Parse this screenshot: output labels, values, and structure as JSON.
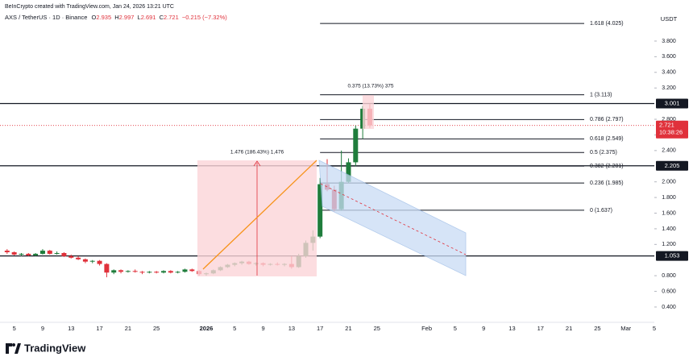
{
  "chart_data": {
    "type": "candlestick",
    "credit": "BeInCrypto created with TradingView.com, Jan 24, 2026 13:21 UTC",
    "symbol": "AXS / TetherUS · 1D · Binance",
    "ohlc_labels": [
      "O",
      "H",
      "L",
      "C"
    ],
    "ohlc_values": [
      2.935,
      2.997,
      2.691,
      2.721
    ],
    "change": "−0.215 (−7.32%)",
    "currency": "USDT",
    "up_color": "#1f7d3c",
    "down_color": "#e0313b",
    "x": [
      "2025-12-04",
      "2025-12-05",
      "2025-12-06",
      "2025-12-07",
      "2025-12-08",
      "2025-12-09",
      "2025-12-10",
      "2025-12-11",
      "2025-12-12",
      "2025-12-13",
      "2025-12-14",
      "2025-12-15",
      "2025-12-16",
      "2025-12-17",
      "2025-12-18",
      "2025-12-19",
      "2025-12-20",
      "2025-12-21",
      "2025-12-22",
      "2025-12-23",
      "2025-12-24",
      "2025-12-25",
      "2025-12-26",
      "2025-12-27",
      "2025-12-28",
      "2025-12-29",
      "2025-12-30",
      "2025-12-31",
      "2026-01-01",
      "2026-01-02",
      "2026-01-03",
      "2026-01-04",
      "2026-01-05",
      "2026-01-06",
      "2026-01-07",
      "2026-01-08",
      "2026-01-09",
      "2026-01-10",
      "2026-01-11",
      "2026-01-12",
      "2026-01-13",
      "2026-01-14",
      "2026-01-15",
      "2026-01-16",
      "2026-01-17",
      "2026-01-18",
      "2026-01-19",
      "2026-01-20",
      "2026-01-21",
      "2026-01-22",
      "2026-01-23",
      "2026-01-24"
    ],
    "ohlc": [
      [
        1.12,
        1.14,
        1.08,
        1.1
      ],
      [
        1.1,
        1.11,
        1.06,
        1.07
      ],
      [
        1.07,
        1.09,
        1.05,
        1.08
      ],
      [
        1.08,
        1.09,
        1.05,
        1.06
      ],
      [
        1.06,
        1.09,
        1.05,
        1.08
      ],
      [
        1.08,
        1.14,
        1.07,
        1.12
      ],
      [
        1.12,
        1.13,
        1.07,
        1.08
      ],
      [
        1.08,
        1.11,
        1.07,
        1.09
      ],
      [
        1.09,
        1.1,
        1.04,
        1.05
      ],
      [
        1.05,
        1.07,
        1.02,
        1.03
      ],
      [
        1.03,
        1.05,
        1.0,
        1.01
      ],
      [
        1.01,
        1.02,
        0.96,
        0.98
      ],
      [
        0.98,
        1.0,
        0.96,
        0.99
      ],
      [
        0.99,
        1.0,
        0.93,
        0.95
      ],
      [
        0.95,
        0.96,
        0.78,
        0.84
      ],
      [
        0.84,
        0.88,
        0.82,
        0.87
      ],
      [
        0.87,
        0.88,
        0.83,
        0.85
      ],
      [
        0.85,
        0.87,
        0.84,
        0.86
      ],
      [
        0.86,
        0.88,
        0.84,
        0.85
      ],
      [
        0.85,
        0.86,
        0.82,
        0.84
      ],
      [
        0.84,
        0.86,
        0.83,
        0.85
      ],
      [
        0.85,
        0.86,
        0.83,
        0.84
      ],
      [
        0.84,
        0.87,
        0.83,
        0.86
      ],
      [
        0.86,
        0.87,
        0.83,
        0.84
      ],
      [
        0.84,
        0.86,
        0.83,
        0.85
      ],
      [
        0.85,
        0.89,
        0.84,
        0.88
      ],
      [
        0.88,
        0.89,
        0.85,
        0.86
      ],
      [
        0.86,
        0.87,
        0.8,
        0.82
      ],
      [
        0.82,
        0.84,
        0.8,
        0.83
      ],
      [
        0.83,
        0.88,
        0.82,
        0.87
      ],
      [
        0.87,
        0.92,
        0.86,
        0.91
      ],
      [
        0.91,
        0.95,
        0.9,
        0.94
      ],
      [
        0.94,
        0.97,
        0.92,
        0.96
      ],
      [
        0.96,
        0.99,
        0.94,
        0.98
      ],
      [
        0.98,
        0.99,
        0.94,
        0.95
      ],
      [
        0.95,
        0.97,
        0.93,
        0.96
      ],
      [
        0.96,
        0.97,
        0.92,
        0.94
      ],
      [
        0.94,
        0.96,
        0.93,
        0.95
      ],
      [
        0.95,
        0.97,
        0.93,
        0.94
      ],
      [
        0.94,
        0.96,
        0.92,
        0.95
      ],
      [
        0.95,
        1.05,
        0.89,
        0.91
      ],
      [
        0.91,
        1.08,
        0.9,
        1.05
      ],
      [
        1.05,
        1.25,
        1.03,
        1.22
      ],
      [
        1.22,
        1.38,
        1.12,
        1.3
      ],
      [
        1.3,
        2.05,
        1.28,
        1.97
      ],
      [
        1.97,
        2.29,
        1.88,
        1.9
      ],
      [
        1.9,
        1.95,
        1.62,
        1.65
      ],
      [
        1.65,
        2.4,
        1.63,
        2.0
      ],
      [
        2.0,
        2.3,
        1.98,
        2.25
      ],
      [
        2.25,
        2.72,
        2.2,
        2.68
      ],
      [
        2.68,
        2.97,
        2.55,
        2.935
      ],
      [
        2.935,
        2.997,
        2.691,
        2.721
      ]
    ],
    "fib_levels": [
      {
        "value": 4.025,
        "label": "1.618 (4.025)"
      },
      {
        "value": 3.113,
        "label": "1 (3.113)"
      },
      {
        "value": 2.797,
        "label": "0.786 (2.797)"
      },
      {
        "value": 2.549,
        "label": "0.618 (2.549)"
      },
      {
        "value": 2.375,
        "label": "0.5 (2.375)"
      },
      {
        "value": 2.201,
        "label": "0.382 (2.201)"
      },
      {
        "value": 1.985,
        "label": "0.236 (1.985)"
      },
      {
        "value": 1.637,
        "label": "0 (1.637)"
      }
    ],
    "hlines": [
      {
        "value": 3.001,
        "label": "3.001"
      },
      {
        "value": 2.205,
        "label": "2.205"
      },
      {
        "value": 1.053,
        "label": "1.053"
      }
    ],
    "last_price": {
      "value": 2.721,
      "label": "2.721"
    },
    "countdown": "10:38:26",
    "annotations": [
      "1.476 (186.43%) 1,476",
      "0.375 (13.73%) 375"
    ],
    "ylim": [
      0.204,
      4.325
    ],
    "yticks": [
      {
        "value": 3.8,
        "label": "3.800"
      },
      {
        "value": 3.6,
        "label": "3.600"
      },
      {
        "value": 3.4,
        "label": "3.400"
      },
      {
        "value": 3.2,
        "label": "3.200"
      },
      {
        "value": 2.8,
        "label": "2.800"
      },
      {
        "value": 2.6,
        "label": "2.600"
      },
      {
        "value": 2.4,
        "label": "2.400"
      },
      {
        "value": 2,
        "label": "2.000"
      },
      {
        "value": 1.8,
        "label": "1.800"
      },
      {
        "value": 1.6,
        "label": "1.600"
      },
      {
        "value": 1.4,
        "label": "1.400"
      },
      {
        "value": 1.2,
        "label": "1.200"
      },
      {
        "value": 0.8,
        "label": "0.800"
      },
      {
        "value": 0.6,
        "label": "0.600"
      },
      {
        "value": 0.4,
        "label": "0.400"
      }
    ],
    "xlim": [
      "2025-12-03",
      "2026-03-05"
    ],
    "xticks": [
      {
        "value": "2025-12-05",
        "label": "5"
      },
      {
        "value": "2025-12-09",
        "label": "9"
      },
      {
        "value": "2025-12-13",
        "label": "13"
      },
      {
        "value": "2025-12-17",
        "label": "17"
      },
      {
        "value": "2025-12-21",
        "label": "21"
      },
      {
        "value": "2025-12-25",
        "label": "25"
      },
      {
        "value": "2026-01-01",
        "label": "2026"
      },
      {
        "value": "2026-01-05",
        "label": "5"
      },
      {
        "value": "2026-01-09",
        "label": "9"
      },
      {
        "value": "2026-01-13",
        "label": "13"
      },
      {
        "value": "2026-01-17",
        "label": "17"
      },
      {
        "value": "2026-01-21",
        "label": "21"
      },
      {
        "value": "2026-01-25",
        "label": "25"
      },
      {
        "value": "2026-02-01",
        "label": "Feb"
      },
      {
        "value": "2026-02-05",
        "label": "5"
      },
      {
        "value": "2026-02-09",
        "label": "9"
      },
      {
        "value": "2026-02-13",
        "label": "13"
      },
      {
        "value": "2026-02-17",
        "label": "17"
      },
      {
        "value": "2026-02-21",
        "label": "21"
      },
      {
        "value": "2026-02-25",
        "label": "25"
      },
      {
        "value": "2026-03-01",
        "label": "Mar"
      },
      {
        "value": "2026-03-05",
        "label": "5"
      }
    ],
    "brand": "TradingView"
  }
}
